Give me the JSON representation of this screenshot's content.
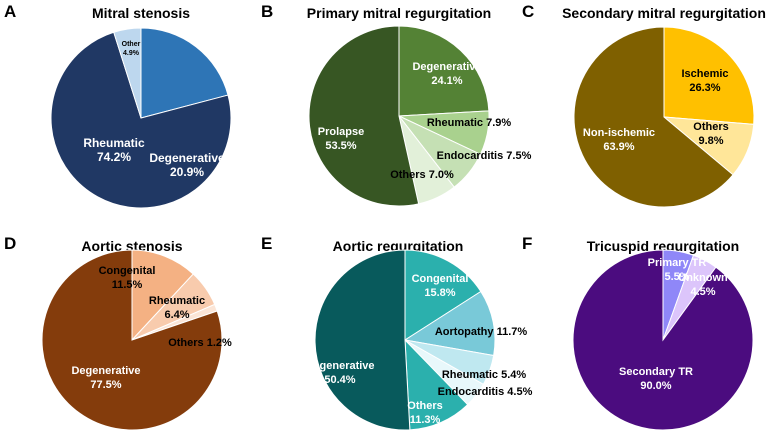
{
  "chart_data": [
    {
      "type": "pie",
      "panel": "A",
      "title": "Mitral stenosis",
      "slices": [
        {
          "name": "Degenerative",
          "value": 20.9,
          "label": "20.9%",
          "color": "#2e75b6",
          "text_color": "#ffffff"
        },
        {
          "name": "Rheumatic",
          "value": 74.2,
          "label": "74.2%",
          "color": "#203864",
          "text_color": "#ffffff"
        },
        {
          "name": "Other",
          "value": 4.9,
          "label": "4.9%",
          "color": "#bdd7ee",
          "text_color": "#000000"
        }
      ]
    },
    {
      "type": "pie",
      "panel": "B",
      "title": "Primary mitral regurgitation",
      "slices": [
        {
          "name": "Degenerative",
          "value": 24.1,
          "label": "24.1%",
          "color": "#548235",
          "text_color": "#ffffff"
        },
        {
          "name": "Rheumatic",
          "value": 7.9,
          "label": "7.9%",
          "color": "#a9d18e",
          "text_color": "#000000"
        },
        {
          "name": "Endocarditis",
          "value": 7.5,
          "label": "7.5%",
          "color": "#c5e0b4",
          "text_color": "#000000"
        },
        {
          "name": "Others",
          "value": 7.0,
          "label": "7.0%",
          "color": "#e2f0d9",
          "text_color": "#000000"
        },
        {
          "name": "Prolapse",
          "value": 53.5,
          "label": "53.5%",
          "color": "#375623",
          "text_color": "#ffffff"
        }
      ]
    },
    {
      "type": "pie",
      "panel": "C",
      "title": "Secondary mitral regurgitation",
      "slices": [
        {
          "name": "Ischemic",
          "value": 26.3,
          "label": "26.3%",
          "color": "#ffc000",
          "text_color": "#000000"
        },
        {
          "name": "Others",
          "value": 9.8,
          "label": "9.8%",
          "color": "#ffe699",
          "text_color": "#000000"
        },
        {
          "name": "Non-ischemic",
          "value": 63.9,
          "label": "63.9%",
          "color": "#7f6000",
          "text_color": "#ffffff"
        }
      ]
    },
    {
      "type": "pie",
      "panel": "D",
      "title": "Aortic stenosis",
      "slices": [
        {
          "name": "Congenital",
          "value": 11.5,
          "label": "11.5%",
          "color": "#f4b183",
          "text_color": "#000000"
        },
        {
          "name": "Rheumatic",
          "value": 6.4,
          "label": "6.4%",
          "color": "#f8cbad",
          "text_color": "#000000"
        },
        {
          "name": "Others",
          "value": 1.2,
          "label": "1.2%",
          "color": "#fbe5d6",
          "text_color": "#000000"
        },
        {
          "name": "Degenerative",
          "value": 77.5,
          "label": "77.5%",
          "color": "#843c0c",
          "text_color": "#ffffff"
        }
      ]
    },
    {
      "type": "pie",
      "panel": "E",
      "title": "Aortic regurgitation",
      "slices": [
        {
          "name": "Congenital",
          "value": 15.8,
          "label": "15.8%",
          "color": "#2bb0ad",
          "text_color": "#ffffff"
        },
        {
          "name": "Aortopathy",
          "value": 11.7,
          "label": "11.7%",
          "color": "#79c9d8",
          "text_color": "#000000"
        },
        {
          "name": "Rheumatic",
          "value": 5.4,
          "label": "5.4%",
          "color": "#bfe8f0",
          "text_color": "#000000"
        },
        {
          "name": "Endocarditis",
          "value": 4.5,
          "label": "4.5%",
          "color": "#e8f8fb",
          "text_color": "#000000"
        },
        {
          "name": "Others",
          "value": 11.3,
          "label": "11.3%",
          "color": "#2bb0ad",
          "text_color": "#ffffff"
        },
        {
          "name": "Degenerative",
          "value": 50.4,
          "label": "50.4%",
          "color": "#085a5c",
          "text_color": "#ffffff"
        }
      ]
    },
    {
      "type": "pie",
      "panel": "F",
      "title": "Tricuspid regurgitation",
      "slices": [
        {
          "name": "Primary TR",
          "value": 5.5,
          "label": "5.5%",
          "color": "#8f87f8",
          "text_color": "#ffffff"
        },
        {
          "name": "Unknown",
          "value": 4.5,
          "label": "4.5%",
          "color": "#dcc5fb",
          "text_color": "#ffffff"
        },
        {
          "name": "Secondary TR",
          "value": 90.0,
          "label": "90.0%",
          "color": "#4b0c7f",
          "text_color": "#ffffff"
        }
      ]
    }
  ]
}
